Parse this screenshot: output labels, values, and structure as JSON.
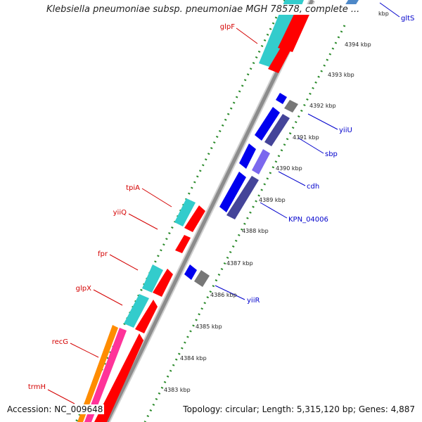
{
  "title": "Klebsiella pneumoniae subsp. pneumoniae MGH 78578, complete ...",
  "footer": {
    "accession_label": "Accession:",
    "accession": "NC_009648",
    "topology_label": "Topology:",
    "topology": "circular;",
    "length_label": "Length:",
    "length": "5,315,120 bp;",
    "genes_label": "Genes:",
    "genes": "4,887"
  },
  "colors": {
    "backbone": "#8c8c8c",
    "tick": "#2a8a2a",
    "label_forward": "#d40000",
    "label_reverse": "#0000cc",
    "gene_red": "#ff0000",
    "gene_cyan": "#33cccc",
    "gene_blue": "#0000ee",
    "gene_navy": "#444499",
    "gene_purple": "#7b68ee",
    "gene_gray": "#777777",
    "gene_orange": "#ff8c00",
    "gene_pink": "#ff3399"
  },
  "scale_labels": [
    "4394 kbp",
    "4393 kbp",
    "4392 kbp",
    "4391 kbp",
    "4390 kbp",
    "4389 kbp",
    "4388 kbp",
    "4387 kbp",
    "4386 kbp",
    "4385 kbp",
    "4384 kbp",
    "4383 kbp",
    "kbp"
  ],
  "gene_labels": {
    "forward": [
      "glpF",
      "tpiA",
      "yiiQ",
      "fpr",
      "glpX",
      "recG",
      "trmH"
    ],
    "reverse": [
      "gltS",
      "yiiU",
      "sbp",
      "cdh",
      "KPN_04006",
      "yiiR"
    ]
  },
  "icons": [
    "gene-arrow-icon"
  ]
}
